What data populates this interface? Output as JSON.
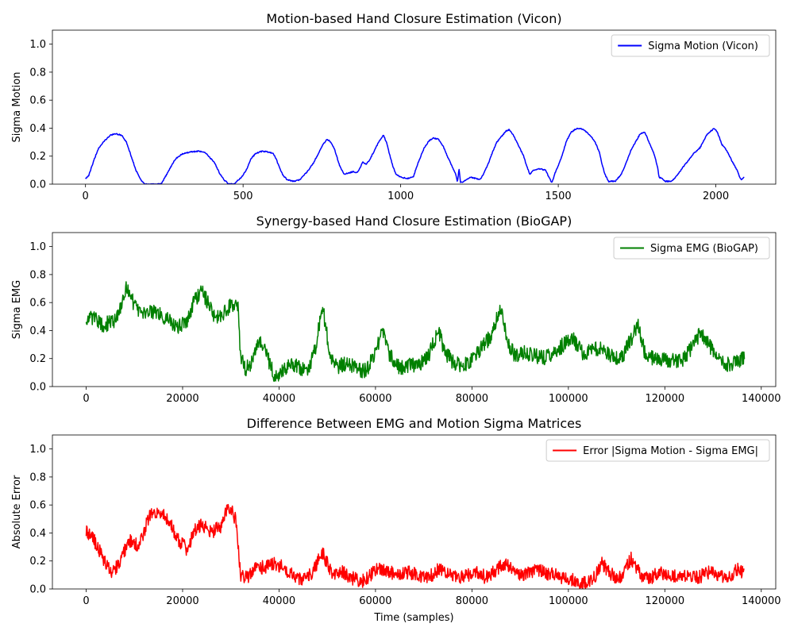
{
  "figure": {
    "background": "#ffffff"
  },
  "chart_data": [
    {
      "type": "line",
      "title": "Motion-based Hand Closure Estimation (Vicon)",
      "xlabel": "",
      "ylabel": "Sigma Motion",
      "xlim": [
        -105,
        2190
      ],
      "ylim": [
        0,
        1.1
      ],
      "xticks": [
        0,
        500,
        1000,
        1500,
        2000
      ],
      "yticks": [
        0.0,
        0.2,
        0.4,
        0.6,
        0.8,
        1.0
      ],
      "xtick_labels": [
        "0",
        "500",
        "1000",
        "1500",
        "2000"
      ],
      "ytick_labels": [
        "0.0",
        "0.2",
        "0.4",
        "0.6",
        "0.8",
        "1.0"
      ],
      "grid": false,
      "legend_position": "upper right",
      "series": [
        {
          "name": "Sigma Motion (Vicon)",
          "color": "#0000ff",
          "noise": 0.004,
          "x": [
            0,
            10,
            25,
            40,
            60,
            80,
            95,
            115,
            130,
            145,
            160,
            175,
            190,
            210,
            225,
            240,
            260,
            285,
            310,
            335,
            360,
            380,
            395,
            410,
            425,
            440,
            455,
            470,
            480,
            495,
            510,
            525,
            540,
            560,
            580,
            595,
            605,
            615,
            625,
            640,
            660,
            680,
            700,
            720,
            735,
            750,
            765,
            775,
            790,
            805,
            820,
            835,
            850,
            860,
            870,
            880,
            890,
            900,
            915,
            930,
            945,
            955,
            965,
            975,
            985,
            1000,
            1020,
            1040,
            1050,
            1060,
            1075,
            1090,
            1105,
            1120,
            1135,
            1150,
            1165,
            1175,
            1180,
            1185,
            1190,
            1200,
            1220,
            1240,
            1250,
            1260,
            1275,
            1290,
            1305,
            1320,
            1335,
            1345,
            1360,
            1375,
            1390,
            1400,
            1410,
            1420,
            1440,
            1460,
            1470,
            1480,
            1490,
            1500,
            1510,
            1525,
            1540,
            1560,
            1580,
            1600,
            1615,
            1630,
            1640,
            1650,
            1660,
            1680,
            1700,
            1715,
            1730,
            1745,
            1760,
            1775,
            1790,
            1805,
            1815,
            1820,
            1830,
            1840,
            1860,
            1880,
            1895,
            1910,
            1930,
            1950,
            1970,
            1985,
            1995,
            2005,
            2020,
            2035,
            2050,
            2065,
            2080,
            2090
          ],
          "y": [
            0.04,
            0.06,
            0.16,
            0.25,
            0.31,
            0.35,
            0.36,
            0.35,
            0.3,
            0.2,
            0.1,
            0.03,
            0.0,
            0.0,
            0.0,
            0.0,
            0.08,
            0.18,
            0.22,
            0.23,
            0.235,
            0.225,
            0.19,
            0.15,
            0.08,
            0.03,
            0.0,
            0.0,
            0.02,
            0.05,
            0.1,
            0.18,
            0.22,
            0.235,
            0.23,
            0.22,
            0.18,
            0.12,
            0.07,
            0.03,
            0.02,
            0.03,
            0.08,
            0.14,
            0.2,
            0.27,
            0.32,
            0.31,
            0.25,
            0.14,
            0.07,
            0.08,
            0.09,
            0.08,
            0.11,
            0.16,
            0.14,
            0.17,
            0.23,
            0.3,
            0.35,
            0.3,
            0.21,
            0.13,
            0.07,
            0.05,
            0.04,
            0.05,
            0.12,
            0.18,
            0.26,
            0.31,
            0.33,
            0.32,
            0.27,
            0.19,
            0.12,
            0.07,
            0.01,
            0.11,
            0.01,
            0.02,
            0.05,
            0.04,
            0.03,
            0.06,
            0.13,
            0.22,
            0.3,
            0.34,
            0.38,
            0.39,
            0.34,
            0.27,
            0.2,
            0.13,
            0.07,
            0.1,
            0.11,
            0.1,
            0.05,
            0.01,
            0.08,
            0.13,
            0.19,
            0.3,
            0.37,
            0.4,
            0.39,
            0.35,
            0.31,
            0.23,
            0.13,
            0.06,
            0.02,
            0.02,
            0.07,
            0.15,
            0.24,
            0.3,
            0.36,
            0.37,
            0.29,
            0.21,
            0.12,
            0.05,
            0.04,
            0.02,
            0.02,
            0.07,
            0.12,
            0.16,
            0.22,
            0.26,
            0.35,
            0.38,
            0.4,
            0.37,
            0.28,
            0.24,
            0.17,
            0.11,
            0.03,
            0.05
          ]
        }
      ]
    },
    {
      "type": "line",
      "title": "Synergy-based Hand Closure Estimation (BioGAP)",
      "xlabel": "",
      "ylabel": "Sigma EMG",
      "xlim": [
        -7000,
        143000
      ],
      "ylim": [
        0,
        1.1
      ],
      "xticks": [
        0,
        20000,
        40000,
        60000,
        80000,
        100000,
        120000,
        140000
      ],
      "yticks": [
        0.0,
        0.2,
        0.4,
        0.6,
        0.8,
        1.0
      ],
      "xtick_labels": [
        "0",
        "20000",
        "40000",
        "60000",
        "80000",
        "100000",
        "120000",
        "140000"
      ],
      "ytick_labels": [
        "0.0",
        "0.2",
        "0.4",
        "0.6",
        "0.8",
        "1.0"
      ],
      "grid": false,
      "legend_position": "upper right",
      "series": [
        {
          "name": "Sigma EMG (BioGAP)",
          "color": "#008000",
          "noise": 0.055,
          "x": [
            0,
            1500,
            3500,
            5500,
            7000,
            8500,
            10000,
            11500,
            13000,
            15000,
            17000,
            19000,
            21000,
            22500,
            24000,
            25500,
            27000,
            28500,
            30000,
            31500,
            32000,
            33000,
            34500,
            36000,
            37500,
            39000,
            40500,
            42000,
            44000,
            46000,
            47500,
            49000,
            50500,
            52000,
            54000,
            56000,
            58000,
            60000,
            61500,
            63000,
            65000,
            67000,
            69000,
            71000,
            73000,
            74500,
            76000,
            78000,
            80000,
            82000,
            84000,
            86000,
            87500,
            89000,
            91000,
            93000,
            95000,
            97000,
            99000,
            101000,
            103000,
            105000,
            107000,
            109000,
            111000,
            113000,
            114500,
            116000,
            118000,
            120000,
            122000,
            124000,
            126000,
            127500,
            129000,
            131000,
            133000,
            135000,
            136500
          ],
          "y": [
            0.48,
            0.5,
            0.44,
            0.46,
            0.54,
            0.72,
            0.58,
            0.5,
            0.55,
            0.52,
            0.48,
            0.43,
            0.47,
            0.62,
            0.68,
            0.58,
            0.48,
            0.52,
            0.58,
            0.56,
            0.22,
            0.12,
            0.18,
            0.32,
            0.22,
            0.08,
            0.1,
            0.16,
            0.14,
            0.12,
            0.26,
            0.58,
            0.24,
            0.14,
            0.17,
            0.13,
            0.11,
            0.24,
            0.4,
            0.22,
            0.13,
            0.15,
            0.16,
            0.22,
            0.4,
            0.24,
            0.18,
            0.14,
            0.19,
            0.28,
            0.36,
            0.58,
            0.3,
            0.22,
            0.24,
            0.22,
            0.21,
            0.24,
            0.3,
            0.34,
            0.24,
            0.26,
            0.28,
            0.22,
            0.2,
            0.34,
            0.44,
            0.22,
            0.2,
            0.2,
            0.18,
            0.2,
            0.3,
            0.4,
            0.3,
            0.2,
            0.16,
            0.18,
            0.2
          ]
        }
      ]
    },
    {
      "type": "line",
      "title": "Difference Between EMG and Motion Sigma Matrices",
      "xlabel": "Time (samples)",
      "ylabel": "Absolute Error",
      "xlim": [
        -7000,
        143000
      ],
      "ylim": [
        0,
        1.1
      ],
      "xticks": [
        0,
        20000,
        40000,
        60000,
        80000,
        100000,
        120000,
        140000
      ],
      "yticks": [
        0.0,
        0.2,
        0.4,
        0.6,
        0.8,
        1.0
      ],
      "xtick_labels": [
        "0",
        "20000",
        "40000",
        "60000",
        "80000",
        "100000",
        "120000",
        "140000"
      ],
      "ytick_labels": [
        "0.0",
        "0.2",
        "0.4",
        "0.6",
        "0.8",
        "1.0"
      ],
      "grid": false,
      "legend_position": "upper right",
      "series": [
        {
          "name": "Error |Sigma Motion - Sigma EMG|",
          "color": "#ff0000",
          "noise": 0.05,
          "x": [
            0,
            1500,
            3500,
            5500,
            7000,
            9000,
            11000,
            13000,
            15000,
            17000,
            19000,
            21000,
            22500,
            24000,
            26000,
            28000,
            29500,
            31000,
            32000,
            33500,
            35000,
            37000,
            39000,
            41000,
            43000,
            45000,
            47000,
            49000,
            51000,
            53000,
            55000,
            57000,
            59000,
            61000,
            63000,
            65000,
            67000,
            69000,
            71000,
            73000,
            75000,
            77000,
            79000,
            81000,
            83000,
            85000,
            87000,
            89000,
            91000,
            93000,
            95000,
            97000,
            99000,
            101000,
            103000,
            105000,
            107000,
            109000,
            111000,
            113000,
            115000,
            117000,
            119000,
            121000,
            123000,
            125000,
            127000,
            129000,
            131000,
            133000,
            135000,
            136500
          ],
          "y": [
            0.42,
            0.36,
            0.22,
            0.12,
            0.2,
            0.35,
            0.3,
            0.52,
            0.55,
            0.5,
            0.36,
            0.28,
            0.42,
            0.46,
            0.4,
            0.45,
            0.6,
            0.5,
            0.1,
            0.08,
            0.14,
            0.16,
            0.18,
            0.15,
            0.1,
            0.06,
            0.12,
            0.26,
            0.1,
            0.12,
            0.08,
            0.05,
            0.1,
            0.15,
            0.12,
            0.1,
            0.12,
            0.1,
            0.08,
            0.14,
            0.1,
            0.08,
            0.1,
            0.12,
            0.08,
            0.14,
            0.18,
            0.12,
            0.1,
            0.14,
            0.12,
            0.1,
            0.08,
            0.06,
            0.04,
            0.06,
            0.18,
            0.1,
            0.08,
            0.22,
            0.1,
            0.08,
            0.12,
            0.1,
            0.08,
            0.1,
            0.08,
            0.12,
            0.1,
            0.08,
            0.14,
            0.12
          ]
        }
      ]
    }
  ]
}
